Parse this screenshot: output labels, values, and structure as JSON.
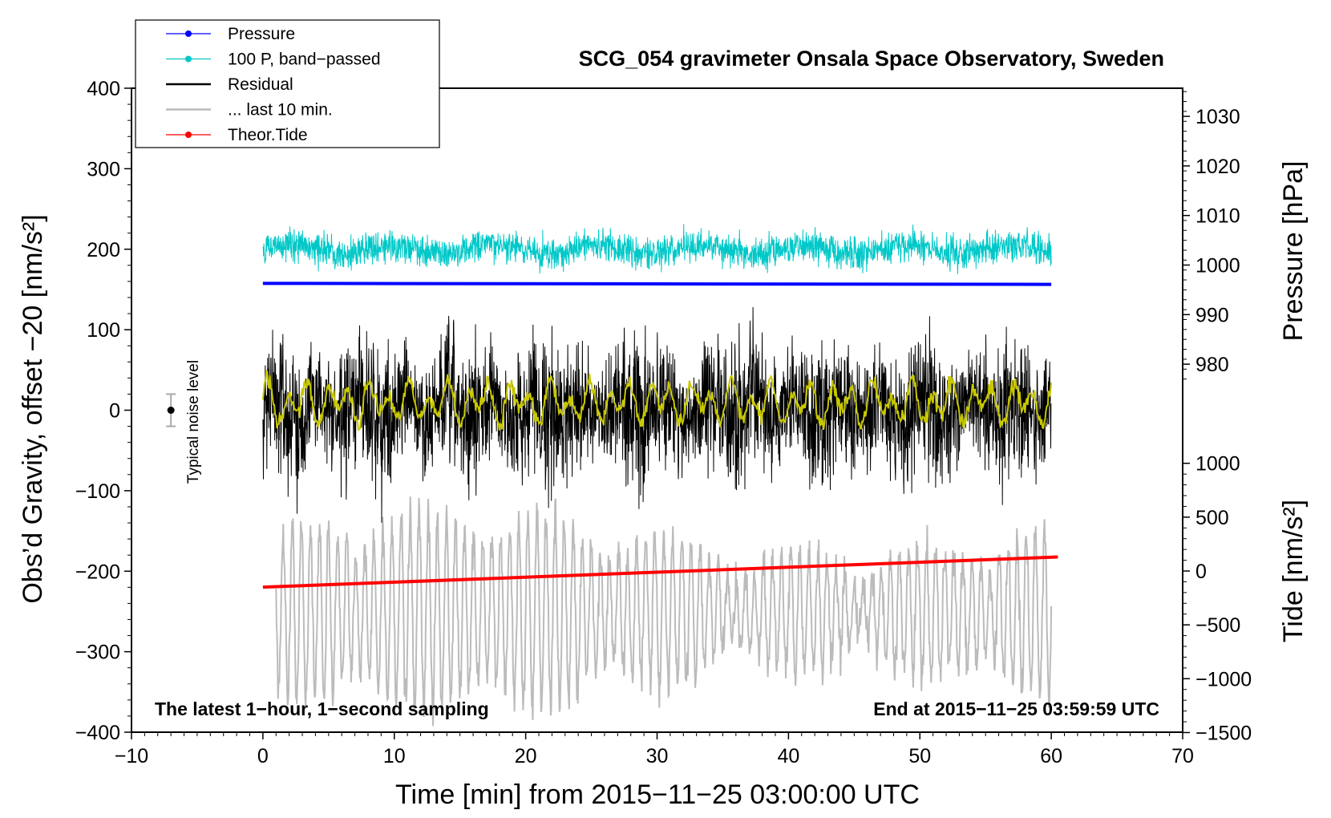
{
  "chart_data": {
    "type": "line",
    "title": "SCG_054 gravimeter Onsala Space Observatory, Sweden",
    "xlabel": "Time [min] from 2015−11−25 03:00:00 UTC",
    "ylabel_left": "Obs’d Gravity, offset −20 [nm/s²]",
    "ylabel_right_top": "Pressure [hPa]",
    "ylabel_right_bottom": "Tide [nm/s²]",
    "xlim": [
      -10,
      70
    ],
    "ylim_left": [
      -400,
      400
    ],
    "x_ticks": [
      -10,
      0,
      10,
      20,
      30,
      40,
      50,
      60,
      70
    ],
    "x_tick_labels": [
      "−10",
      "0",
      "10",
      "20",
      "30",
      "40",
      "50",
      "60",
      "70"
    ],
    "y_left_ticks": [
      400,
      300,
      200,
      100,
      0,
      -100,
      -200,
      -300,
      -400
    ],
    "y_left_tick_labels": [
      "400",
      "300",
      "200",
      "100",
      "0",
      "−100",
      "−200",
      "−300",
      "−400"
    ],
    "y_pressure_ticks": [
      1030,
      1020,
      1010,
      1000,
      990,
      980
    ],
    "y_pressure_tick_labels": [
      "1030",
      "1020",
      "1010",
      "1000",
      "990",
      "980"
    ],
    "y_tide_ticks": [
      1000,
      500,
      0,
      -500,
      -1000,
      -1500
    ],
    "y_tide_tick_labels": [
      "1000",
      "500",
      "0",
      "−500",
      "−1000",
      "−1500"
    ],
    "legend": [
      {
        "label": "Pressure",
        "color": "#0000ff",
        "marker": true
      },
      {
        "label": "100 P, band−passed",
        "color": "#00c8c8",
        "marker": true
      },
      {
        "label": "Residual",
        "color": "#000000",
        "marker": false
      },
      {
        "label": "... last 10 min.",
        "color": "#bbbbbb",
        "marker": false
      },
      {
        "label": "Theor.Tide",
        "color": "#ff0000",
        "marker": true
      }
    ],
    "annotations": {
      "left": "The latest 1−hour, 1−second sampling",
      "right": "End at 2015−11−25 03:59:59 UTC",
      "noise": "Typical noise level"
    },
    "noise_bar": {
      "x": -7,
      "center": 0,
      "half_range": 20
    },
    "series": [
      {
        "name": "Pressure",
        "axis": "pressure",
        "x_range": [
          0,
          60
        ],
        "start_hPa": 996.3,
        "end_hPa": 996.1,
        "color": "#0000ff"
      },
      {
        "name": "100 P, band−passed",
        "axis": "left",
        "x_range": [
          0,
          60
        ],
        "mean": 200,
        "amplitude": 22,
        "color": "#00c8c8"
      },
      {
        "name": "Residual",
        "axis": "left",
        "x_range": [
          0,
          60
        ],
        "mean": 0,
        "amplitude": 80,
        "color": "#000000"
      },
      {
        "name": "Residual, smoothed",
        "axis": "left",
        "x_range": [
          0,
          60
        ],
        "mean": 10,
        "amplitude": 30,
        "color": "#c8c800"
      },
      {
        "name": "... last 10 min.",
        "axis": "left",
        "x_range": [
          0,
          60
        ],
        "mean": -250,
        "amplitude": 100,
        "color": "#bbbbbb"
      },
      {
        "name": "Theor.Tide",
        "axis": "tide",
        "x_range": [
          0,
          60.5
        ],
        "start_nm": -150,
        "end_nm": 130,
        "color": "#ff0000"
      }
    ]
  }
}
